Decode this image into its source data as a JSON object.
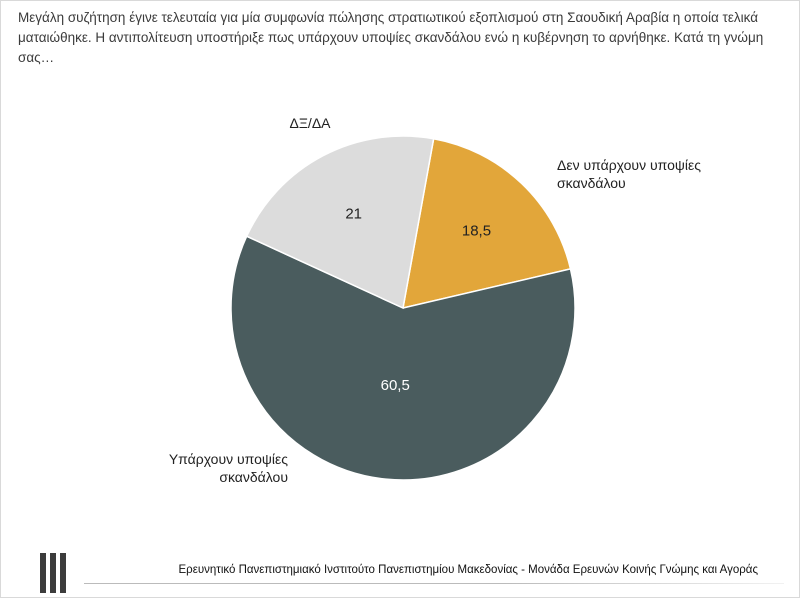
{
  "question": "Μεγάλη συζήτηση έγινε τελευταία για μία συμφωνία πώλησης στρατιωτικού εξοπλισμού στη Σαουδική Αραβία η οποία τελικά ματαιώθηκε. Η αντιπολίτευση υποστήριξε πως υπάρχουν υποψίες σκανδάλου ενώ η κυβέρνηση το αρνήθηκε. Κατά τη γνώμη σας…",
  "footer": "Ερευνητικό Πανεπιστημιακό Ινστιτούτο Πανεπιστημίου Μακεδονίας - Μονάδα Ερευνών Κοινής Γνώμης και Αγοράς",
  "chart_data": {
    "type": "pie",
    "title": "",
    "slices": [
      {
        "label": "Δεν υπάρχουν υποψίες σκανδάλου",
        "label_lines": [
          "Δεν υπάρχουν υποψίες",
          "σκανδάλου"
        ],
        "value": 18.5,
        "value_text": "18,5",
        "color": "#E2A63A",
        "value_color": "#222222"
      },
      {
        "label": "Υπάρχουν υποψίες σκανδάλου",
        "label_lines": [
          "Υπάρχουν υποψίες",
          "σκανδάλου"
        ],
        "value": 60.5,
        "value_text": "60,5",
        "color": "#4A5C5E",
        "value_color": "#FFFFFF"
      },
      {
        "label": "ΔΞ/ΔΑ",
        "label_lines": [
          "ΔΞ/ΔΑ"
        ],
        "value": 21,
        "value_text": "21",
        "color": "#DCDCDC",
        "value_color": "#222222"
      }
    ],
    "start_direction": "12 o'clock, slightly clockwise",
    "direction": "clockwise",
    "legend": "none"
  }
}
